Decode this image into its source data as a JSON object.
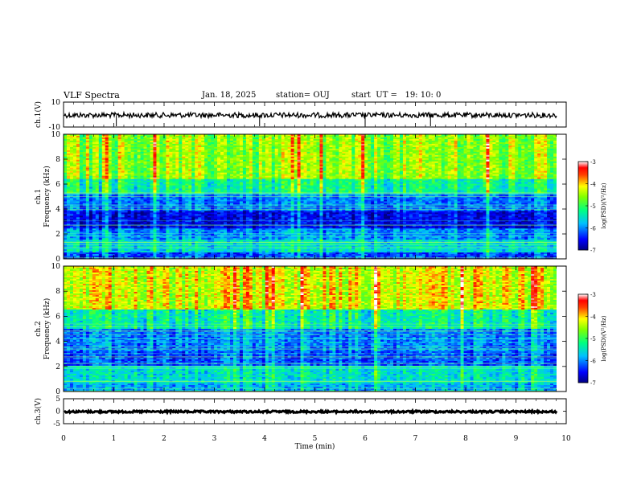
{
  "header": {
    "title": "VLF Spectra",
    "date": "Jan. 18, 2025",
    "station": "station= OUJ",
    "start": "start  UT =   19: 10: 0"
  },
  "chart_data": [
    {
      "type": "line",
      "panel": "ch1-waveform",
      "ylabel": "ch.1(V)",
      "yticks": [
        "10",
        "-10"
      ],
      "ylim": [
        -10,
        10
      ],
      "xlim": [
        0,
        10
      ],
      "series_color": "#000000",
      "approx_level": -0.5,
      "spikes_min": [
        1.05,
        3.9,
        6.0,
        7.3
      ]
    },
    {
      "type": "heatmap",
      "panel": "ch1-spectrogram",
      "ylabel_line1": "ch.1",
      "ylabel_line2": "Frequency (kHz)",
      "yticks": [
        "0",
        "2",
        "4",
        "6",
        "8",
        "10"
      ],
      "ylim": [
        0,
        10
      ],
      "xlim": [
        0,
        9.8
      ],
      "colorbar": {
        "label": "log(PSD)(V²/Hz)",
        "ticks": [
          "-3",
          "-4",
          "-5",
          "-6",
          "-7"
        ],
        "range": [
          -7,
          -3
        ]
      },
      "bands_khz": [
        {
          "from": 0,
          "to": 0.5,
          "log_psd": -6.3
        },
        {
          "from": 0.5,
          "to": 1.6,
          "log_psd": -5.6
        },
        {
          "from": 1.6,
          "to": 2.4,
          "log_psd": -6.0
        },
        {
          "from": 2.4,
          "to": 3.8,
          "log_psd": -6.6
        },
        {
          "from": 3.8,
          "to": 5.2,
          "log_psd": -6.1
        },
        {
          "from": 5.2,
          "to": 6.4,
          "log_psd": -5.3
        },
        {
          "from": 6.4,
          "to": 10,
          "log_psd": -4.6
        }
      ]
    },
    {
      "type": "heatmap",
      "panel": "ch2-spectrogram",
      "ylabel_line1": "ch.2",
      "ylabel_line2": "Frequency (kHz)",
      "yticks": [
        "0",
        "2",
        "4",
        "6",
        "8",
        "10"
      ],
      "ylim": [
        0,
        10
      ],
      "xlim": [
        0,
        9.8
      ],
      "colorbar": {
        "label": "log(PSD)(V²/Hz)",
        "ticks": [
          "-3",
          "-4",
          "-5",
          "-6",
          "-7"
        ],
        "range": [
          -7,
          -3
        ]
      },
      "bands_khz": [
        {
          "from": 0,
          "to": 0.6,
          "log_psd": -5.8
        },
        {
          "from": 0.6,
          "to": 2.0,
          "log_psd": -5.5
        },
        {
          "from": 2.0,
          "to": 3.2,
          "log_psd": -6.2
        },
        {
          "from": 3.2,
          "to": 5.0,
          "log_psd": -6.0
        },
        {
          "from": 5.0,
          "to": 6.6,
          "log_psd": -5.3
        },
        {
          "from": 6.6,
          "to": 10,
          "log_psd": -4.2
        }
      ]
    },
    {
      "type": "line",
      "panel": "ch3-waveform",
      "ylabel": "ch.3(V)",
      "yticks": [
        "5",
        "0",
        "-5"
      ],
      "ylim": [
        -5,
        5
      ],
      "xlim": [
        0,
        10
      ],
      "series_color": "#000000",
      "approx_level": -0.2,
      "xlabel": "Time (min)",
      "xticks": [
        "0",
        "1",
        "2",
        "3",
        "4",
        "5",
        "6",
        "7",
        "8",
        "9",
        "10"
      ]
    }
  ],
  "colors": {
    "colormap": [
      "#000080",
      "#0000ff",
      "#0080ff",
      "#00ffff",
      "#00ff80",
      "#80ff00",
      "#ffff00",
      "#ff8000",
      "#ff0000",
      "#ffffff"
    ]
  }
}
